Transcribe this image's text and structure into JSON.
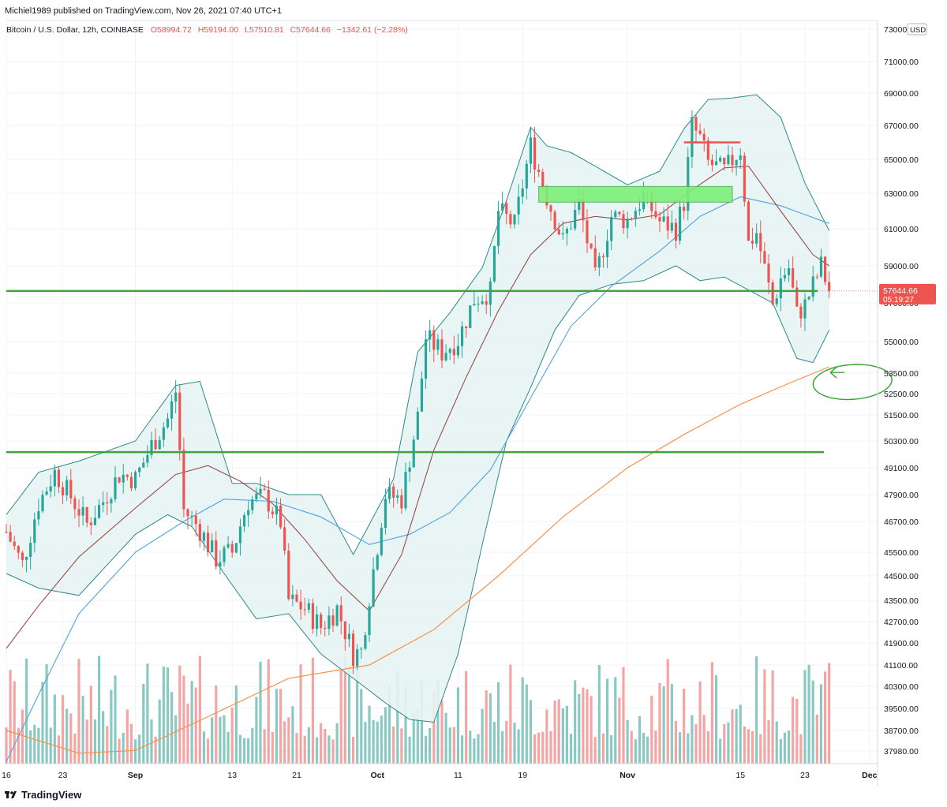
{
  "header": {
    "published": "Michiel1989 published on TradingView.com, Nov 26, 2021 07:40 UTC+1",
    "symbol": "Bitcoin / U.S. Dollar, 12h, COINBASE",
    "O": "O58994.72",
    "H": "H59194.00",
    "L": "L57510.81",
    "C": "C57644.66",
    "change": "−1342.61 (−2.28%)"
  },
  "footer": {
    "logo": "TradingView"
  },
  "colors": {
    "up": "#26a69a",
    "down": "#ef5350",
    "up_vol": "#89c9c1",
    "down_vol": "#f4a4a2",
    "bb_fill": "#e6f4f3",
    "bb_line": "#2b8a87",
    "ma_short": "#9c4b47",
    "ma_mid": "#4aa3df",
    "ma_long": "#f4924d",
    "support": "#3fa33a",
    "zone_fill": "#7df07a",
    "resistance": "#ef5350",
    "annot": "#3fa33a"
  },
  "chart_data": {
    "type": "candlestick",
    "timeframe": "12h",
    "ylim": [
      37500,
      73500
    ],
    "currency_label": "USD",
    "y_ticks": [
      73000,
      71000,
      69000,
      67000,
      65000,
      63000,
      61000,
      59000,
      57000,
      55000,
      53500,
      52500,
      51500,
      50300,
      49100,
      47900,
      46700,
      45500,
      44500,
      43500,
      42700,
      41900,
      41100,
      40300,
      39500,
      38700,
      37980
    ],
    "y_tick_labels": [
      "73000.00",
      "71000.00",
      "69000.00",
      "67000.00",
      "65000.00",
      "63000.00",
      "61000.00",
      "59000.00",
      "57000.00",
      "55000.00",
      "53500.00",
      "52500.00",
      "51500.00",
      "50300.00",
      "49100.00",
      "47900.00",
      "46700.00",
      "45500.00",
      "44500.00",
      "43500.00",
      "42700.00",
      "41900.00",
      "41100.00",
      "40300.00",
      "39500.00",
      "38700.00",
      "37980.00"
    ],
    "x_start": "2021-08-16",
    "x_end": "2021-12-02",
    "x_ticks": [
      {
        "date": "2021-08-16",
        "label": "16"
      },
      {
        "date": "2021-08-23",
        "label": "23"
      },
      {
        "date": "2021-09-01",
        "label": "Sep"
      },
      {
        "date": "2021-09-13",
        "label": "13"
      },
      {
        "date": "2021-09-21",
        "label": "21"
      },
      {
        "date": "2021-10-01",
        "label": "Oct"
      },
      {
        "date": "2021-10-11",
        "label": "11"
      },
      {
        "date": "2021-10-19",
        "label": "19"
      },
      {
        "date": "2021-11-01",
        "label": "Nov"
      },
      {
        "date": "2021-11-15",
        "label": "15"
      },
      {
        "date": "2021-11-23",
        "label": "23"
      },
      {
        "date": "2021-12-01",
        "label": "Dec"
      }
    ],
    "last_price": 57644.66,
    "last_price_label": "57644.66",
    "countdown_label": "05:19:27",
    "close_path": [
      [
        "2021-08-16",
        46300
      ],
      [
        "2021-08-18",
        45000
      ],
      [
        "2021-08-20",
        47500
      ],
      [
        "2021-08-22",
        48900
      ],
      [
        "2021-08-24",
        47800
      ],
      [
        "2021-08-26",
        46600
      ],
      [
        "2021-08-28",
        47600
      ],
      [
        "2021-08-30",
        48800
      ],
      [
        "2021-09-01",
        48600
      ],
      [
        "2021-09-03",
        50100
      ],
      [
        "2021-09-05",
        51300
      ],
      [
        "2021-09-06",
        52600
      ],
      [
        "2021-09-07",
        47200
      ],
      [
        "2021-09-09",
        46400
      ],
      [
        "2021-09-11",
        45200
      ],
      [
        "2021-09-13",
        45500
      ],
      [
        "2021-09-15",
        47600
      ],
      [
        "2021-09-17",
        47800
      ],
      [
        "2021-09-19",
        46700
      ],
      [
        "2021-09-20",
        43500
      ],
      [
        "2021-09-22",
        43200
      ],
      [
        "2021-09-24",
        42500
      ],
      [
        "2021-09-26",
        43200
      ],
      [
        "2021-09-28",
        41500
      ],
      [
        "2021-09-29",
        41600
      ],
      [
        "2021-09-30",
        43700
      ],
      [
        "2021-10-02",
        47900
      ],
      [
        "2021-10-04",
        47700
      ],
      [
        "2021-10-06",
        51400
      ],
      [
        "2021-10-07",
        55200
      ],
      [
        "2021-10-09",
        54500
      ],
      [
        "2021-10-11",
        55100
      ],
      [
        "2021-10-13",
        57200
      ],
      [
        "2021-10-15",
        57600
      ],
      [
        "2021-10-16",
        62000
      ],
      [
        "2021-10-18",
        61200
      ],
      [
        "2021-10-20",
        65800
      ],
      [
        "2021-10-22",
        62800
      ],
      [
        "2021-10-24",
        60300
      ],
      [
        "2021-10-26",
        62400
      ],
      [
        "2021-10-28",
        58300
      ],
      [
        "2021-10-30",
        61700
      ],
      [
        "2021-11-01",
        61500
      ],
      [
        "2021-11-03",
        62800
      ],
      [
        "2021-11-05",
        61400
      ],
      [
        "2021-11-07",
        61000
      ],
      [
        "2021-11-08",
        62500
      ],
      [
        "2021-11-09",
        67000
      ],
      [
        "2021-11-10",
        66200
      ],
      [
        "2021-11-11",
        64800
      ],
      [
        "2021-11-13",
        64300
      ],
      [
        "2021-11-15",
        65600
      ],
      [
        "2021-11-16",
        60200
      ],
      [
        "2021-11-17",
        60800
      ],
      [
        "2021-11-19",
        56900
      ],
      [
        "2021-11-20",
        58300
      ],
      [
        "2021-11-21",
        58900
      ],
      [
        "2021-11-22",
        56400
      ],
      [
        "2021-11-23",
        56900
      ],
      [
        "2021-11-25",
        59000
      ],
      [
        "2021-11-26",
        57645
      ]
    ],
    "bb_upper": [
      [
        "2021-08-16",
        47000
      ],
      [
        "2021-08-20",
        48900
      ],
      [
        "2021-08-25",
        49400
      ],
      [
        "2021-09-01",
        50300
      ],
      [
        "2021-09-06",
        52900
      ],
      [
        "2021-09-09",
        53100
      ],
      [
        "2021-09-13",
        48400
      ],
      [
        "2021-09-16",
        48400
      ],
      [
        "2021-09-20",
        47900
      ],
      [
        "2021-09-24",
        47900
      ],
      [
        "2021-09-28",
        45400
      ],
      [
        "2021-10-03",
        48600
      ],
      [
        "2021-10-06",
        54500
      ],
      [
        "2021-10-10",
        56500
      ],
      [
        "2021-10-14",
        58900
      ],
      [
        "2021-10-17",
        62600
      ],
      [
        "2021-10-20",
        66900
      ],
      [
        "2021-10-22",
        65800
      ],
      [
        "2021-10-25",
        65400
      ],
      [
        "2021-10-28",
        64600
      ],
      [
        "2021-11-01",
        63500
      ],
      [
        "2021-11-05",
        64300
      ],
      [
        "2021-11-08",
        66800
      ],
      [
        "2021-11-11",
        68600
      ],
      [
        "2021-11-14",
        68700
      ],
      [
        "2021-11-17",
        68900
      ],
      [
        "2021-11-20",
        67500
      ],
      [
        "2021-11-23",
        63600
      ],
      [
        "2021-11-26",
        60900
      ]
    ],
    "bb_lower": [
      [
        "2021-08-16",
        44600
      ],
      [
        "2021-08-20",
        44000
      ],
      [
        "2021-08-25",
        43700
      ],
      [
        "2021-09-01",
        46200
      ],
      [
        "2021-09-05",
        47000
      ],
      [
        "2021-09-08",
        46500
      ],
      [
        "2021-09-12",
        44600
      ],
      [
        "2021-09-16",
        42800
      ],
      [
        "2021-09-20",
        43000
      ],
      [
        "2021-09-24",
        41500
      ],
      [
        "2021-09-28",
        40600
      ],
      [
        "2021-10-02",
        39700
      ],
      [
        "2021-10-05",
        39100
      ],
      [
        "2021-10-08",
        39000
      ],
      [
        "2021-10-11",
        41500
      ],
      [
        "2021-10-14",
        45800
      ],
      [
        "2021-10-17",
        50300
      ],
      [
        "2021-10-20",
        52800
      ],
      [
        "2021-10-23",
        55600
      ],
      [
        "2021-10-26",
        57400
      ],
      [
        "2021-10-30",
        58000
      ],
      [
        "2021-11-03",
        58200
      ],
      [
        "2021-11-07",
        59000
      ],
      [
        "2021-11-10",
        58200
      ],
      [
        "2021-11-13",
        58400
      ],
      [
        "2021-11-16",
        57700
      ],
      [
        "2021-11-19",
        57000
      ],
      [
        "2021-11-22",
        54200
      ],
      [
        "2021-11-24",
        54000
      ],
      [
        "2021-11-26",
        55600
      ]
    ],
    "ma_short": [
      [
        "2021-08-16",
        41700
      ],
      [
        "2021-08-20",
        43300
      ],
      [
        "2021-08-25",
        45300
      ],
      [
        "2021-09-01",
        47300
      ],
      [
        "2021-09-06",
        48800
      ],
      [
        "2021-09-10",
        49200
      ],
      [
        "2021-09-14",
        48500
      ],
      [
        "2021-09-18",
        47500
      ],
      [
        "2021-09-22",
        46000
      ],
      [
        "2021-09-26",
        44300
      ],
      [
        "2021-09-30",
        43100
      ],
      [
        "2021-10-04",
        45400
      ],
      [
        "2021-10-08",
        49900
      ],
      [
        "2021-10-12",
        53300
      ],
      [
        "2021-10-16",
        56600
      ],
      [
        "2021-10-20",
        59600
      ],
      [
        "2021-10-24",
        61300
      ],
      [
        "2021-10-28",
        61700
      ],
      [
        "2021-11-01",
        61500
      ],
      [
        "2021-11-05",
        61800
      ],
      [
        "2021-11-09",
        63200
      ],
      [
        "2021-11-13",
        64500
      ],
      [
        "2021-11-16",
        64600
      ],
      [
        "2021-11-20",
        62000
      ],
      [
        "2021-11-24",
        59600
      ],
      [
        "2021-11-26",
        59000
      ]
    ],
    "ma_mid": [
      [
        "2021-08-16",
        37600
      ],
      [
        "2021-08-20",
        40000
      ],
      [
        "2021-08-25",
        43000
      ],
      [
        "2021-09-01",
        45500
      ],
      [
        "2021-09-07",
        46700
      ],
      [
        "2021-09-12",
        47700
      ],
      [
        "2021-09-18",
        47600
      ],
      [
        "2021-09-24",
        46900
      ],
      [
        "2021-09-30",
        45800
      ],
      [
        "2021-10-05",
        46200
      ],
      [
        "2021-10-10",
        47100
      ],
      [
        "2021-10-15",
        49000
      ],
      [
        "2021-10-20",
        52300
      ],
      [
        "2021-10-25",
        55800
      ],
      [
        "2021-10-30",
        57900
      ],
      [
        "2021-11-05",
        59800
      ],
      [
        "2021-11-10",
        61700
      ],
      [
        "2021-11-15",
        62800
      ],
      [
        "2021-11-20",
        62300
      ],
      [
        "2021-11-26",
        61300
      ]
    ],
    "ma_long": [
      [
        "2021-08-16",
        38700
      ],
      [
        "2021-08-25",
        37900
      ],
      [
        "2021-09-01",
        38000
      ],
      [
        "2021-09-10",
        39200
      ],
      [
        "2021-09-20",
        40600
      ],
      [
        "2021-09-30",
        41100
      ],
      [
        "2021-10-08",
        42400
      ],
      [
        "2021-10-16",
        44500
      ],
      [
        "2021-10-24",
        46900
      ],
      [
        "2021-11-01",
        49100
      ],
      [
        "2021-11-08",
        50600
      ],
      [
        "2021-11-15",
        52000
      ],
      [
        "2021-11-21",
        53000
      ],
      [
        "2021-11-26",
        53800
      ]
    ],
    "volume": {
      "max_label": "",
      "bars_note": "per-12h volume, colored by candle direction"
    },
    "support_levels": [
      57644,
      49800
    ],
    "supply_zone": {
      "from": "2021-10-21",
      "to": "2021-11-14",
      "low": 62500,
      "high": 63400
    },
    "resistance_line": {
      "from": "2021-11-08",
      "to": "2021-11-15",
      "level": 66000
    },
    "annotation": {
      "type": "circle-arrow",
      "date": "2021-11-24",
      "price": 53300
    }
  }
}
